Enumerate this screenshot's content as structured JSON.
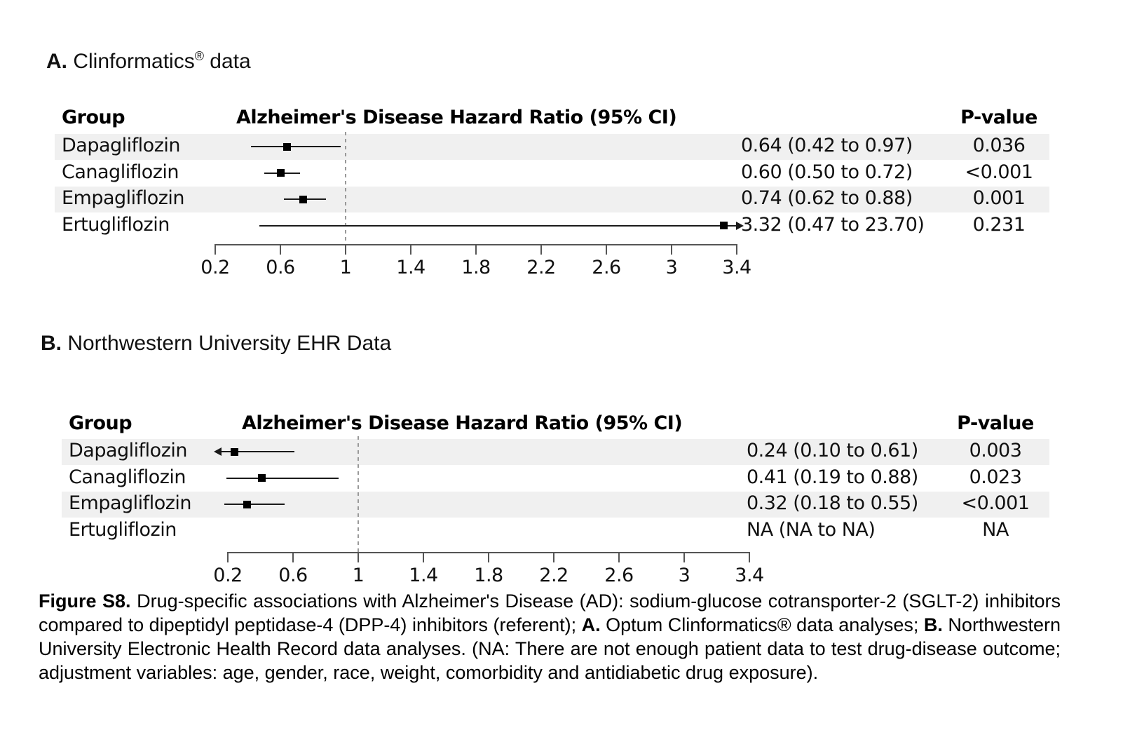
{
  "colors": {
    "band": "#f0f0f0",
    "ref_line": "#999999",
    "axis": "#555555",
    "ink": "#000000"
  },
  "chart_data": [
    {
      "type": "forest",
      "title_parts": {
        "prefix": "A.",
        "main": " Clinformatics",
        "sup": "®",
        "tail": " data"
      },
      "columns": {
        "group": "Group",
        "hr": "Alzheimer's Disease Hazard Ratio (95% CI)",
        "p": "P-value"
      },
      "axis": {
        "min": 0.2,
        "max": 3.4,
        "ticks": [
          0.2,
          0.6,
          1,
          1.4,
          1.8,
          2.2,
          2.6,
          3,
          3.4
        ],
        "ref_line": 1,
        "grid": false
      },
      "rows": [
        {
          "group": "Dapagliflozin",
          "hr": 0.64,
          "lo": 0.42,
          "hi": 0.97,
          "hr_text": "0.64 (0.42 to 0.97)",
          "p": "0.036"
        },
        {
          "group": "Canagliflozin",
          "hr": 0.6,
          "lo": 0.5,
          "hi": 0.72,
          "hr_text": "0.60 (0.50 to 0.72)",
          "p": "<0.001"
        },
        {
          "group": "Empagliflozin",
          "hr": 0.74,
          "lo": 0.62,
          "hi": 0.88,
          "hr_text": "0.74 (0.62 to 0.88)",
          "p": "0.001"
        },
        {
          "group": "Ertugliflozin",
          "hr": 3.32,
          "lo": 0.47,
          "hi": 23.7,
          "hr_text": "3.32 (0.47 to 23.70)",
          "p": "0.231"
        }
      ]
    },
    {
      "type": "forest",
      "title_parts": {
        "prefix": "B.",
        "main": " Northwestern University EHR Data",
        "sup": "",
        "tail": ""
      },
      "columns": {
        "group": "Group",
        "hr": "Alzheimer's Disease Hazard Ratio (95% CI)",
        "p": "P-value"
      },
      "axis": {
        "min": 0.2,
        "max": 3.4,
        "ticks": [
          0.2,
          0.6,
          1,
          1.4,
          1.8,
          2.2,
          2.6,
          3,
          3.4
        ],
        "ref_line": 1,
        "grid": false
      },
      "rows": [
        {
          "group": "Dapagliflozin",
          "hr": 0.24,
          "lo": 0.1,
          "hi": 0.61,
          "hr_text": "0.24 (0.10 to 0.61)",
          "p": "0.003"
        },
        {
          "group": "Canagliflozin",
          "hr": 0.41,
          "lo": 0.19,
          "hi": 0.88,
          "hr_text": "0.41 (0.19 to 0.88)",
          "p": "0.023"
        },
        {
          "group": "Empagliflozin",
          "hr": 0.32,
          "lo": 0.18,
          "hi": 0.55,
          "hr_text": "0.32 (0.18 to 0.55)",
          "p": "<0.001"
        },
        {
          "group": "Ertugliflozin",
          "hr": null,
          "lo": null,
          "hi": null,
          "hr_text": "NA (NA to NA)",
          "p": "NA"
        }
      ]
    }
  ],
  "caption": {
    "segments": [
      {
        "text": "Figure S8.",
        "bold": true
      },
      {
        "text": " Drug-specific associations with Alzheimer's Disease (AD): sodium-glucose cotransporter-2 (SGLT-2) inhibitors compared to dipeptidyl peptidase-4 (DPP-4) inhibitors (referent); ",
        "bold": false
      },
      {
        "text": "A.",
        "bold": true
      },
      {
        "text": " Optum Clinformatics® data analyses; ",
        "bold": false
      },
      {
        "text": "B.",
        "bold": true
      },
      {
        "text": " Northwestern University Electronic Health Record data analyses. (NA: There are not enough patient data to test drug-disease outcome; adjustment variables: age, gender, race, weight, comorbidity and antidiabetic drug exposure).",
        "bold": false
      }
    ]
  }
}
